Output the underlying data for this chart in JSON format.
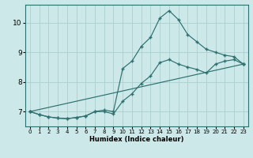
{
  "xlabel": "Humidex (Indice chaleur)",
  "bg_color": "#cce8e8",
  "line_color": "#2d7070",
  "grid_color": "#aad0d0",
  "xlim": [
    -0.5,
    23.5
  ],
  "ylim": [
    6.5,
    10.6
  ],
  "yticks": [
    7,
    8,
    9,
    10
  ],
  "xticks": [
    0,
    1,
    2,
    3,
    4,
    5,
    6,
    7,
    8,
    9,
    10,
    11,
    12,
    13,
    14,
    15,
    16,
    17,
    18,
    19,
    20,
    21,
    22,
    23
  ],
  "series": [
    {
      "x": [
        0,
        1,
        2,
        3,
        4,
        5,
        6,
        7,
        8,
        9,
        10,
        11,
        12,
        13,
        14,
        15,
        16,
        17,
        18,
        19,
        20,
        21,
        22,
        23
      ],
      "y": [
        7.0,
        6.9,
        6.82,
        6.78,
        6.76,
        6.8,
        6.85,
        7.0,
        7.05,
        7.0,
        8.45,
        8.7,
        9.2,
        9.5,
        10.15,
        10.4,
        10.1,
        9.6,
        9.35,
        9.1,
        9.0,
        8.9,
        8.85,
        8.6
      ]
    },
    {
      "x": [
        0,
        1,
        2,
        3,
        4,
        5,
        6,
        7,
        8,
        9,
        10,
        11,
        12,
        13,
        14,
        15,
        16,
        17,
        18,
        19,
        20,
        21,
        22,
        23
      ],
      "y": [
        7.0,
        6.9,
        6.82,
        6.78,
        6.76,
        6.8,
        6.85,
        7.0,
        7.0,
        6.92,
        7.35,
        7.6,
        7.95,
        8.2,
        8.65,
        8.75,
        8.6,
        8.5,
        8.42,
        8.3,
        8.6,
        8.7,
        8.75,
        8.6
      ]
    },
    {
      "x": [
        0,
        23
      ],
      "y": [
        7.0,
        8.6
      ]
    }
  ]
}
